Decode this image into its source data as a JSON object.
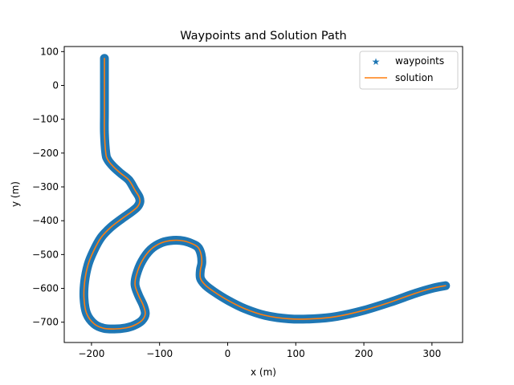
{
  "chart_data": {
    "type": "line",
    "title": "Waypoints and Solution Path",
    "xlabel": "x (m)",
    "ylabel": "y (m)",
    "xlim": [
      -240,
      345
    ],
    "ylim": [
      -760,
      115
    ],
    "xticks": [
      -200,
      -100,
      0,
      100,
      200,
      300
    ],
    "yticks": [
      100,
      0,
      -100,
      -200,
      -300,
      -400,
      -500,
      -600,
      -700
    ],
    "xtick_labels": [
      "−200",
      "−100",
      "0",
      "100",
      "200",
      "300"
    ],
    "ytick_labels": [
      "100",
      "0",
      "−100",
      "−200",
      "−300",
      "−400",
      "−500",
      "−600",
      "−700"
    ],
    "grid": false,
    "legend_position": "top-right",
    "series": [
      {
        "name": "waypoints",
        "style": "star-markers",
        "color": "#1f77b4",
        "x": [
          -181,
          -181,
          -181,
          -181,
          -179,
          -176,
          -168,
          -157,
          -145,
          -136,
          -130,
          -129,
          -133,
          -142,
          -156,
          -172,
          -186,
          -197,
          -205,
          -210,
          -211,
          -207,
          -196,
          -182,
          -166,
          -150,
          -138,
          -126,
          -121,
          -124,
          -131,
          -136,
          -134,
          -126,
          -113,
          -97,
          -80,
          -64,
          -50,
          -43,
          -39,
          -38,
          -40,
          -40,
          -33,
          -20,
          0,
          25,
          55,
          90,
          125,
          160,
          200,
          240,
          275,
          300,
          320
        ],
        "y": [
          80,
          0,
          -80,
          -140,
          -200,
          -220,
          -240,
          -260,
          -280,
          -310,
          -330,
          -345,
          -360,
          -375,
          -395,
          -420,
          -450,
          -490,
          -530,
          -580,
          -630,
          -675,
          -705,
          -718,
          -720,
          -717,
          -710,
          -695,
          -675,
          -650,
          -620,
          -590,
          -560,
          -520,
          -485,
          -465,
          -458,
          -460,
          -470,
          -480,
          -500,
          -525,
          -545,
          -570,
          -590,
          -610,
          -635,
          -660,
          -680,
          -690,
          -690,
          -683,
          -665,
          -640,
          -615,
          -600,
          -592
        ]
      },
      {
        "name": "solution",
        "style": "line",
        "color": "#ff7f0e",
        "x": [
          -181,
          -181,
          -181,
          -181,
          -179,
          -176,
          -168,
          -157,
          -145,
          -136,
          -130,
          -129,
          -133,
          -142,
          -156,
          -172,
          -186,
          -197,
          -205,
          -210,
          -211,
          -207,
          -196,
          -182,
          -166,
          -150,
          -138,
          -126,
          -121,
          -124,
          -131,
          -136,
          -134,
          -126,
          -113,
          -97,
          -80,
          -64,
          -50,
          -43,
          -39,
          -38,
          -40,
          -40,
          -33,
          -20,
          0,
          25,
          55,
          90,
          125,
          160,
          200,
          240,
          275,
          300,
          320
        ],
        "y": [
          80,
          0,
          -80,
          -140,
          -200,
          -220,
          -240,
          -260,
          -280,
          -310,
          -330,
          -345,
          -360,
          -375,
          -395,
          -420,
          -450,
          -490,
          -530,
          -580,
          -630,
          -675,
          -705,
          -718,
          -720,
          -717,
          -710,
          -695,
          -675,
          -650,
          -620,
          -590,
          -560,
          -520,
          -485,
          -465,
          -458,
          -460,
          -470,
          -480,
          -500,
          -525,
          -545,
          -570,
          -590,
          -610,
          -635,
          -660,
          -680,
          -690,
          -690,
          -683,
          -665,
          -640,
          -615,
          -600,
          -592
        ]
      }
    ]
  }
}
